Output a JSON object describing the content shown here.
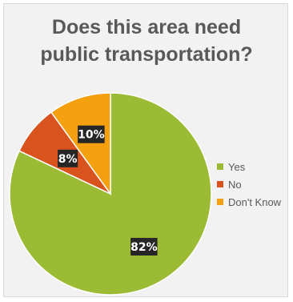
{
  "chart_data": {
    "type": "pie",
    "title_lines": [
      "Does this area need",
      "public transportation?"
    ],
    "categories": [
      "Yes",
      "No",
      "Don't Know"
    ],
    "values": [
      82,
      8,
      10
    ],
    "labels": [
      "82%",
      "8%",
      "10%"
    ],
    "colors": [
      "#9bbb34",
      "#d9531e",
      "#f5a10f"
    ],
    "legend_position": "right"
  }
}
